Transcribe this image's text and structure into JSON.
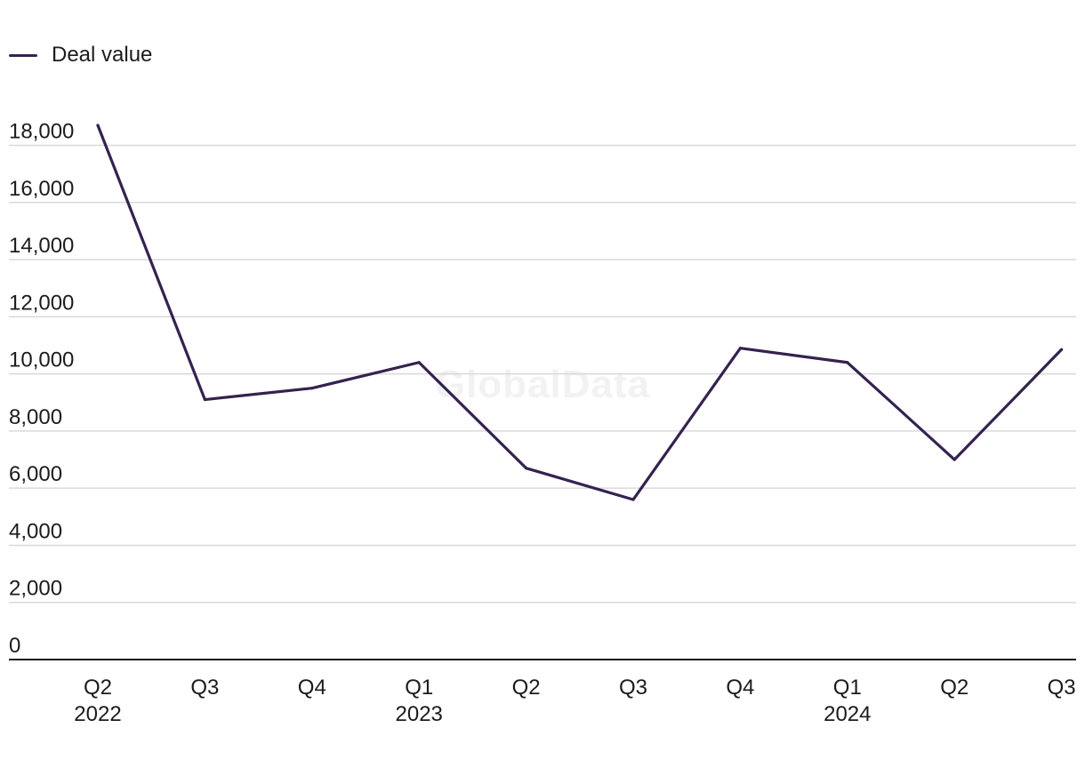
{
  "legend": {
    "label": "Deal value",
    "color": "#35224f"
  },
  "watermark": "GlobalData",
  "chart_data": {
    "type": "line",
    "categories": [
      "Q2",
      "Q3",
      "Q4",
      "Q1",
      "Q2",
      "Q3",
      "Q4",
      "Q1",
      "Q2",
      "Q3"
    ],
    "year_labels": [
      "2022",
      "",
      "",
      "2023",
      "",
      "",
      "",
      "2024",
      "",
      ""
    ],
    "series": [
      {
        "name": "Deal value",
        "color": "#35224f",
        "values": [
          18700,
          9100,
          9500,
          10400,
          6700,
          5600,
          10900,
          10400,
          7000,
          10850
        ]
      }
    ],
    "yticks": [
      "0",
      "2,000",
      "4,000",
      "6,000",
      "8,000",
      "10,000",
      "12,000",
      "14,000",
      "16,000",
      "18,000"
    ],
    "ytick_values": [
      0,
      2000,
      4000,
      6000,
      8000,
      10000,
      12000,
      14000,
      16000,
      18000
    ],
    "ylim": [
      0,
      18000
    ],
    "grid": true,
    "legend_position": "top-left",
    "title": "",
    "xlabel": "",
    "ylabel": ""
  }
}
